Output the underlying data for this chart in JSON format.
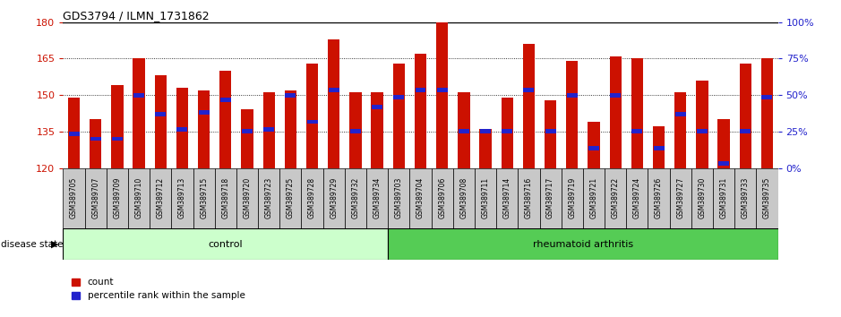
{
  "title": "GDS3794 / ILMN_1731862",
  "samples": [
    "GSM389705",
    "GSM389707",
    "GSM389709",
    "GSM389710",
    "GSM389712",
    "GSM389713",
    "GSM389715",
    "GSM389718",
    "GSM389720",
    "GSM389723",
    "GSM389725",
    "GSM389728",
    "GSM389729",
    "GSM389732",
    "GSM389734",
    "GSM389703",
    "GSM389704",
    "GSM389706",
    "GSM389708",
    "GSM389711",
    "GSM389714",
    "GSM389716",
    "GSM389717",
    "GSM389719",
    "GSM389721",
    "GSM389722",
    "GSM389724",
    "GSM389726",
    "GSM389727",
    "GSM389730",
    "GSM389731",
    "GSM389733",
    "GSM389735"
  ],
  "counts": [
    149,
    140,
    154,
    165,
    158,
    153,
    152,
    160,
    144,
    151,
    152,
    163,
    173,
    151,
    151,
    163,
    167,
    184,
    151,
    136,
    149,
    171,
    148,
    164,
    139,
    166,
    165,
    137,
    151,
    156,
    140,
    163,
    165
  ],
  "percentile_ranks": [
    134,
    132,
    132,
    150,
    142,
    136,
    143,
    148,
    135,
    136,
    150,
    139,
    152,
    135,
    145,
    149,
    152,
    152,
    135,
    135,
    135,
    152,
    135,
    150,
    128,
    150,
    135,
    128,
    142,
    135,
    122,
    135,
    149
  ],
  "ctrl_count": 15,
  "ra_count": 18,
  "ymin": 120,
  "ymax": 180,
  "yticks_left": [
    120,
    135,
    150,
    165,
    180
  ],
  "right_yticks_pct": [
    0,
    25,
    50,
    75,
    100
  ],
  "bar_color": "#cc1100",
  "marker_color": "#2222cc",
  "control_color": "#ccffcc",
  "ra_color": "#55cc55",
  "tick_bg_color": "#c8c8c8"
}
